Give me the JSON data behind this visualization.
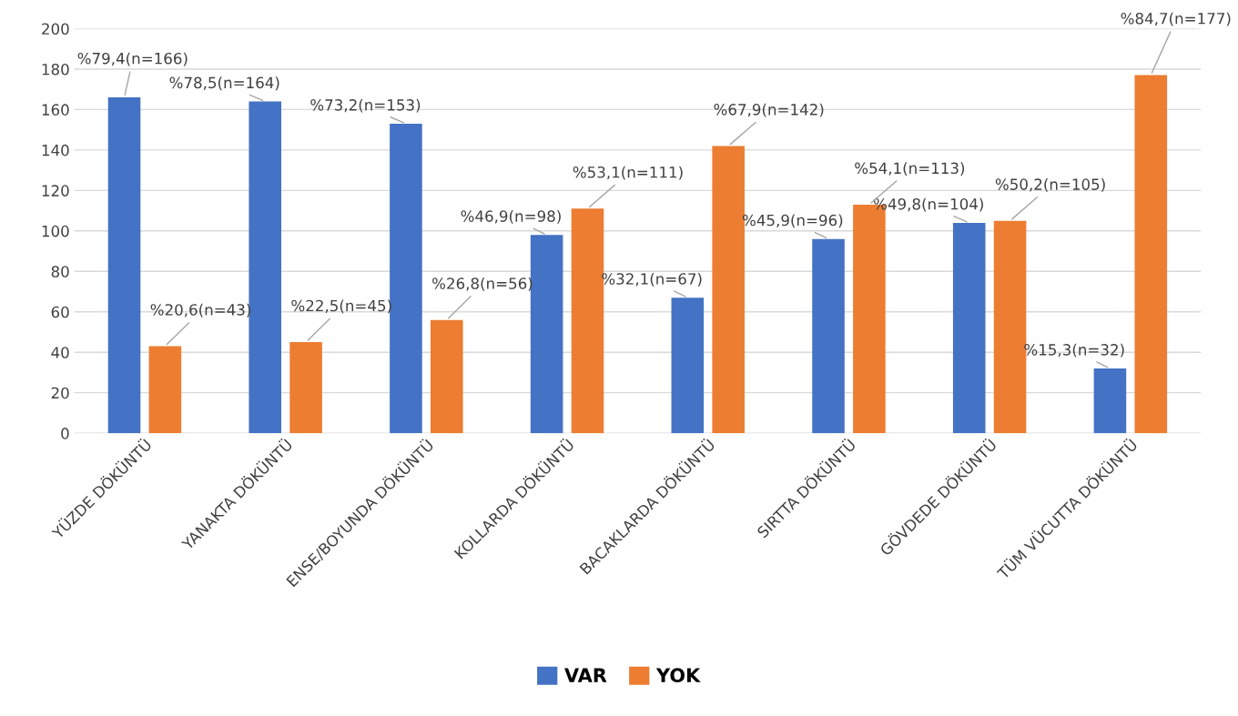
{
  "chart_data": {
    "type": "bar",
    "categories": [
      "YÜZDE DÖKÜNTÜ",
      "YANAKTA DÖKÜNTÜ",
      "ENSE/BOYUNDA DÖKÜNTÜ",
      "KOLLARDA DÖKÜNTÜ",
      "BACAKLARDA DÖKÜNTÜ",
      "SIRTTA DÖKÜNTÜ",
      "GÖVDEDE DÖKÜNTÜ",
      "TÜM VÜCUTTA DÖKÜNTÜ"
    ],
    "series": [
      {
        "name": "VAR",
        "color": "#4472c4",
        "values": [
          166,
          164,
          153,
          98,
          67,
          96,
          104,
          32
        ],
        "value_labels": [
          "%79,4(n=166)",
          "%78,5(n=164)",
          "%73,2(n=153)",
          "%46,9(n=98)",
          "%32,1(n=67)",
          "%45,9(n=96)",
          "%49,8(n=104)",
          "%15,3(n=32)"
        ]
      },
      {
        "name": "YOK",
        "color": "#ed7d31",
        "values": [
          43,
          45,
          56,
          111,
          142,
          113,
          105,
          177
        ],
        "value_labels": [
          "%20,6(n=43)",
          "%22,5(n=45)",
          "%26,8(n=56)",
          "%53,1(n=111)",
          "%67,9(n=142)",
          "%54,1(n=113)",
          "%50,2(n=105)",
          "%84,7(n=177)"
        ]
      }
    ],
    "ylim": [
      0,
      200
    ],
    "yticks": [
      0,
      20,
      40,
      60,
      80,
      100,
      120,
      140,
      160,
      180,
      200
    ],
    "grid": "y",
    "legend": "bottom"
  }
}
